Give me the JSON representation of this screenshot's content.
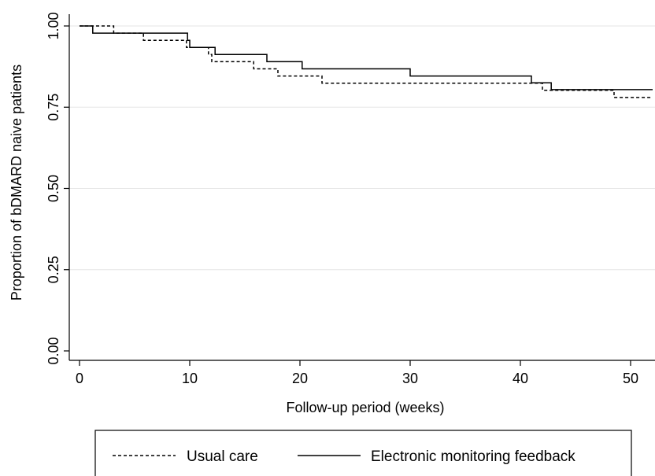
{
  "chart_data": {
    "type": "line",
    "subtype": "kaplan-meier step",
    "xlabel": "Follow-up period (weeks)",
    "ylabel": "Proportion of bDMARD naive patients",
    "xlim": [
      0,
      52
    ],
    "ylim": [
      0,
      1.0
    ],
    "x_ticks": [
      0,
      10,
      20,
      30,
      40,
      50
    ],
    "x_tick_labels": [
      "0",
      "10",
      "20",
      "30",
      "40",
      "50"
    ],
    "y_ticks": [
      0,
      0.25,
      0.5,
      0.75,
      1.0
    ],
    "y_tick_labels": [
      "0.00",
      "0.25",
      "0.50",
      "0.75",
      "1.00"
    ],
    "grid": "horizontal",
    "legend_position": "bottom",
    "series": [
      {
        "name": "Usual care",
        "style": "dashed",
        "color": "#000000",
        "points": [
          [
            0,
            1.0
          ],
          [
            3.1,
            1.0
          ],
          [
            3.1,
            0.978
          ],
          [
            5.8,
            0.978
          ],
          [
            5.8,
            0.956
          ],
          [
            9.7,
            0.956
          ],
          [
            9.7,
            0.934
          ],
          [
            11.7,
            0.934
          ],
          [
            11.7,
            0.912
          ],
          [
            12.0,
            0.912
          ],
          [
            12.0,
            0.89
          ],
          [
            15.8,
            0.89
          ],
          [
            15.8,
            0.868
          ],
          [
            18.0,
            0.868
          ],
          [
            18.0,
            0.846
          ],
          [
            22.0,
            0.846
          ],
          [
            22.0,
            0.824
          ],
          [
            42.0,
            0.824
          ],
          [
            42.0,
            0.802
          ],
          [
            48.5,
            0.802
          ],
          [
            48.5,
            0.78
          ],
          [
            52,
            0.78
          ]
        ]
      },
      {
        "name": "Electronic monitoring feedback",
        "style": "solid",
        "color": "#000000",
        "points": [
          [
            0,
            1.0
          ],
          [
            1.2,
            1.0
          ],
          [
            1.2,
            0.978
          ],
          [
            9.8,
            0.978
          ],
          [
            9.8,
            0.956
          ],
          [
            10.0,
            0.956
          ],
          [
            10.0,
            0.934
          ],
          [
            12.3,
            0.934
          ],
          [
            12.3,
            0.912
          ],
          [
            17.0,
            0.912
          ],
          [
            17.0,
            0.89
          ],
          [
            20.2,
            0.89
          ],
          [
            20.2,
            0.868
          ],
          [
            30.0,
            0.868
          ],
          [
            30.0,
            0.846
          ],
          [
            41.0,
            0.846
          ],
          [
            41.0,
            0.825
          ],
          [
            42.8,
            0.825
          ],
          [
            42.8,
            0.804
          ],
          [
            52,
            0.804
          ]
        ]
      }
    ]
  },
  "legend": {
    "items": [
      {
        "label": "Usual care",
        "style": "dashed"
      },
      {
        "label": "Electronic monitoring feedback",
        "style": "solid"
      }
    ]
  }
}
